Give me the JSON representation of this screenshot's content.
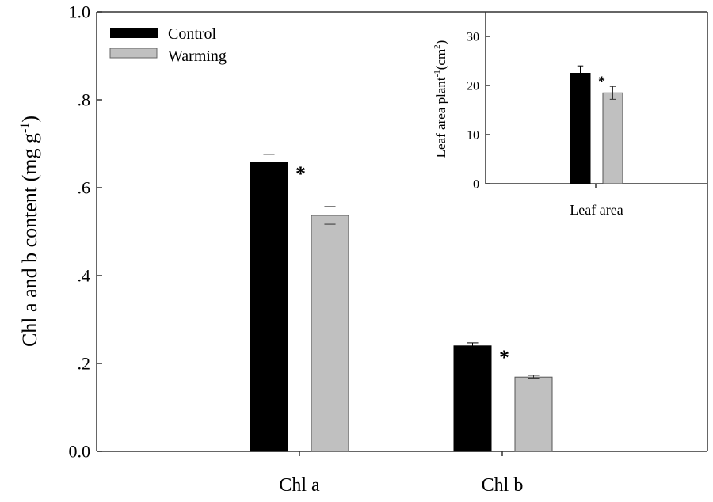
{
  "chart_data": [
    {
      "type": "bar",
      "title": "",
      "categories": [
        "Chl a",
        "Chl b"
      ],
      "series": [
        {
          "name": "Control",
          "color": "#000000",
          "values": [
            0.658,
            0.24
          ],
          "errors": [
            0.018,
            0.007
          ],
          "significance": [
            "*",
            "*"
          ]
        },
        {
          "name": "Warming",
          "color": "#c0c0c0",
          "values": [
            0.537,
            0.169
          ],
          "errors": [
            0.02,
            0.004
          ]
        }
      ],
      "xlabel": "",
      "ylabel": "Chl a and b content (mg g",
      "ylabel_sup": "-1",
      "ylabel_end": ")",
      "ylim": [
        0,
        1.0
      ],
      "yticks": [
        0,
        0.2,
        0.4,
        0.6,
        0.8,
        1.0
      ],
      "ytick_labels": [
        "0.0",
        ".2",
        ".4",
        ".6",
        ".8",
        "1.0"
      ],
      "legend": {
        "placement": "top-left",
        "entries": [
          "Control",
          "Warming"
        ]
      }
    },
    {
      "type": "bar",
      "title": "inset",
      "categories": [
        "Leaf  area"
      ],
      "series": [
        {
          "name": "Control",
          "color": "#000000",
          "values": [
            22.5
          ],
          "errors": [
            1.5
          ],
          "significance": [
            "*"
          ]
        },
        {
          "name": "Warming",
          "color": "#c0c0c0",
          "values": [
            18.5
          ],
          "errors": [
            1.3
          ]
        }
      ],
      "xlabel": "Leaf  area",
      "ylabel": "Leaf area plant",
      "ylabel_sup1": "-1",
      "ylabel_mid": "(cm",
      "ylabel_sup2": "2",
      "ylabel_end": ")",
      "ylim": [
        0,
        35
      ],
      "yticks": [
        0,
        10,
        20,
        30
      ],
      "ytick_labels": [
        "0",
        "10",
        "20",
        "30"
      ]
    }
  ]
}
